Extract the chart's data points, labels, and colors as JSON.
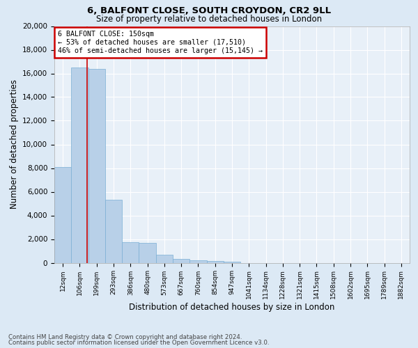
{
  "title_line1": "6, BALFONT CLOSE, SOUTH CROYDON, CR2 9LL",
  "title_line2": "Size of property relative to detached houses in London",
  "xlabel": "Distribution of detached houses by size in London",
  "ylabel": "Number of detached properties",
  "bar_labels": [
    "12sqm",
    "106sqm",
    "199sqm",
    "293sqm",
    "386sqm",
    "480sqm",
    "573sqm",
    "667sqm",
    "760sqm",
    "854sqm",
    "947sqm",
    "1041sqm",
    "1134sqm",
    "1228sqm",
    "1321sqm",
    "1415sqm",
    "1508sqm",
    "1602sqm",
    "1695sqm",
    "1789sqm",
    "1882sqm"
  ],
  "bar_values": [
    8100,
    16500,
    16400,
    5300,
    1750,
    1700,
    650,
    320,
    180,
    130,
    90,
    0,
    0,
    0,
    0,
    0,
    0,
    0,
    0,
    0,
    0
  ],
  "bar_color": "#b8d0e8",
  "bar_edge_color": "#7aafd4",
  "property_line_x": 1.45,
  "annotation_title": "6 BALFONT CLOSE: 150sqm",
  "annotation_line1": "← 53% of detached houses are smaller (17,510)",
  "annotation_line2": "46% of semi-detached houses are larger (15,145) →",
  "annotation_box_color": "#ffffff",
  "annotation_box_edge": "#cc0000",
  "red_line_color": "#cc0000",
  "ylim": [
    0,
    20000
  ],
  "yticks": [
    0,
    2000,
    4000,
    6000,
    8000,
    10000,
    12000,
    14000,
    16000,
    18000,
    20000
  ],
  "bg_color": "#dce9f5",
  "plot_bg_color": "#e8f0f8",
  "grid_color": "#ffffff",
  "footer_line1": "Contains HM Land Registry data © Crown copyright and database right 2024.",
  "footer_line2": "Contains public sector information licensed under the Open Government Licence v3.0."
}
